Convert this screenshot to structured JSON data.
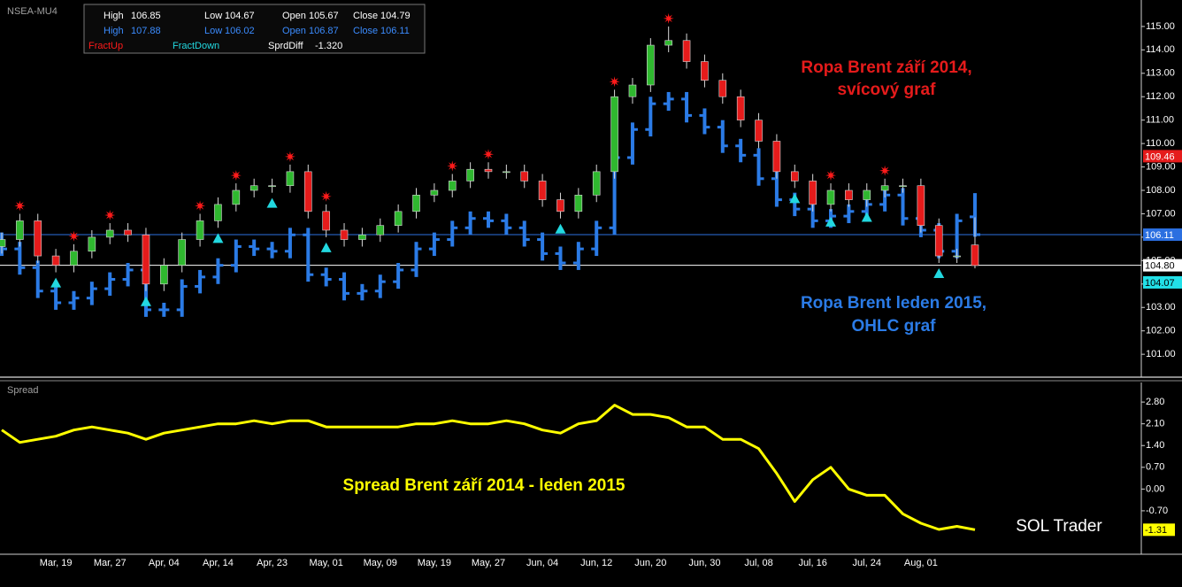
{
  "chart_data": [
    {
      "type": "candlestick",
      "title": "NSEA-MU4",
      "ylim": [
        100.06,
        116.13
      ],
      "yticks": [
        {
          "value": 101,
          "label": "101.00"
        },
        {
          "value": 102,
          "label": "102.00"
        },
        {
          "value": 103,
          "label": "103.00"
        },
        {
          "value": 104,
          "label": "104.00"
        },
        {
          "value": 105,
          "label": "105.00"
        },
        {
          "value": 106,
          "label": "106.00"
        },
        {
          "value": 107,
          "label": "107.00"
        },
        {
          "value": 108,
          "label": "108.00"
        },
        {
          "value": 109,
          "label": "109.00"
        },
        {
          "value": 110,
          "label": "110.00"
        },
        {
          "value": 111,
          "label": "111.00"
        },
        {
          "value": 112,
          "label": "112.00"
        },
        {
          "value": 113,
          "label": "113.00"
        },
        {
          "value": 114,
          "label": "114.00"
        },
        {
          "value": 115,
          "label": "115.00"
        }
      ],
      "series": [
        {
          "type": "ohlc",
          "color": "#2b7be6",
          "open": [
            105.9,
            105.5,
            104.7,
            103.7,
            103.2,
            103.4,
            103.8,
            104.2,
            104.6,
            102.9,
            102.9,
            103.9,
            104.3,
            104.8,
            105.6,
            105.5,
            105.4,
            106.1,
            104.4,
            104.2,
            103.6,
            103.7,
            104.1,
            104.6,
            105.5,
            105.9,
            106.4,
            106.8,
            106.7,
            106.4,
            105.9,
            105.3,
            104.9,
            105.5,
            106.4,
            109.4,
            110.6,
            111.7,
            111.9,
            111.2,
            110.7,
            109.9,
            109.5,
            108.5,
            107.6,
            107.2,
            106.7,
            106.9,
            107.1,
            107.4,
            107.8,
            106.8,
            106.3,
            105.4,
            106.87
          ],
          "high": [
            106.2,
            105.8,
            105.0,
            104.0,
            103.7,
            104.1,
            104.5,
            104.9,
            104.9,
            103.2,
            104.2,
            104.6,
            105.1,
            105.9,
            105.9,
            105.8,
            106.4,
            106.4,
            104.7,
            104.5,
            104.0,
            104.4,
            104.9,
            105.8,
            106.2,
            106.7,
            107.1,
            107.1,
            107.0,
            106.7,
            106.2,
            105.6,
            105.8,
            106.7,
            109.7,
            110.9,
            112.0,
            112.2,
            112.2,
            111.5,
            111.0,
            110.2,
            109.8,
            108.8,
            107.9,
            107.5,
            107.2,
            107.4,
            107.7,
            108.1,
            108.1,
            107.1,
            106.6,
            107.0,
            107.88
          ],
          "low": [
            105.2,
            104.4,
            103.4,
            102.9,
            102.9,
            103.1,
            103.5,
            103.9,
            102.6,
            102.6,
            102.6,
            103.6,
            104.0,
            104.5,
            105.2,
            105.1,
            105.1,
            104.1,
            103.9,
            103.3,
            103.3,
            103.4,
            103.8,
            104.3,
            105.2,
            105.6,
            106.1,
            106.4,
            106.1,
            105.6,
            105.0,
            104.6,
            104.6,
            105.2,
            106.1,
            109.1,
            110.3,
            111.4,
            110.9,
            110.4,
            109.6,
            109.2,
            108.2,
            107.3,
            106.9,
            106.4,
            106.4,
            106.6,
            106.8,
            107.1,
            106.5,
            106.0,
            105.1,
            105.1,
            106.02
          ],
          "close": [
            105.5,
            104.7,
            103.7,
            103.2,
            103.4,
            103.8,
            104.2,
            104.6,
            102.9,
            102.9,
            103.9,
            104.3,
            104.8,
            105.6,
            105.5,
            105.4,
            106.1,
            104.4,
            104.2,
            103.6,
            103.7,
            104.1,
            104.6,
            105.5,
            105.9,
            106.4,
            106.8,
            106.7,
            106.4,
            105.9,
            105.3,
            104.9,
            105.5,
            106.4,
            109.4,
            110.6,
            111.7,
            111.9,
            111.2,
            110.7,
            109.9,
            109.5,
            108.5,
            107.6,
            107.2,
            106.7,
            106.9,
            107.1,
            107.4,
            107.8,
            106.8,
            106.3,
            105.4,
            106.7,
            106.11
          ]
        },
        {
          "type": "candlestick",
          "up_color": "#2fb82f",
          "down_color": "#e51b1b",
          "open": [
            105.6,
            105.9,
            106.7,
            105.2,
            104.8,
            105.4,
            106.0,
            106.3,
            106.1,
            104.0,
            104.8,
            105.9,
            106.7,
            107.4,
            108.0,
            108.2,
            108.2,
            108.8,
            107.1,
            106.3,
            105.9,
            106.1,
            106.5,
            107.1,
            107.8,
            108.0,
            108.4,
            108.9,
            108.8,
            108.8,
            108.4,
            107.6,
            107.1,
            107.8,
            108.8,
            112.0,
            112.5,
            114.2,
            114.4,
            113.5,
            112.7,
            112.0,
            111.0,
            110.1,
            108.8,
            108.4,
            107.4,
            108.0,
            107.6,
            108.0,
            108.2,
            108.2,
            106.5,
            105.2,
            105.67
          ],
          "high": [
            106.2,
            107.0,
            107.0,
            105.5,
            105.7,
            106.3,
            106.6,
            106.6,
            106.4,
            105.1,
            106.2,
            107.0,
            107.7,
            108.3,
            108.5,
            108.5,
            109.1,
            109.1,
            107.4,
            106.6,
            106.4,
            106.8,
            107.4,
            108.1,
            108.3,
            108.7,
            109.2,
            109.2,
            109.1,
            109.1,
            108.7,
            107.9,
            108.1,
            109.1,
            112.3,
            112.8,
            114.5,
            115.0,
            114.7,
            113.8,
            113.0,
            112.3,
            111.3,
            110.4,
            109.1,
            108.7,
            108.3,
            108.3,
            108.3,
            108.5,
            108.5,
            108.5,
            106.8,
            105.5,
            106.85
          ],
          "low": [
            105.3,
            105.6,
            104.9,
            104.5,
            104.5,
            105.1,
            105.7,
            105.8,
            103.7,
            103.7,
            104.5,
            105.6,
            106.4,
            107.1,
            107.7,
            107.9,
            107.9,
            106.8,
            106.0,
            105.6,
            105.6,
            105.8,
            106.2,
            106.8,
            107.5,
            107.7,
            108.1,
            108.5,
            108.5,
            108.1,
            107.3,
            106.8,
            106.8,
            107.5,
            108.5,
            111.7,
            112.2,
            113.9,
            113.2,
            112.4,
            111.7,
            110.7,
            109.8,
            108.5,
            108.1,
            107.1,
            107.1,
            107.3,
            107.3,
            107.7,
            107.9,
            106.2,
            104.9,
            104.9,
            104.67
          ],
          "close": [
            105.9,
            106.7,
            105.2,
            104.8,
            105.4,
            106.0,
            106.3,
            106.1,
            104.0,
            104.8,
            105.9,
            106.7,
            107.4,
            108.0,
            108.2,
            108.2,
            108.8,
            107.1,
            106.3,
            105.9,
            106.1,
            106.5,
            107.1,
            107.8,
            108.0,
            108.4,
            108.9,
            108.8,
            108.8,
            108.4,
            107.6,
            107.1,
            107.8,
            108.8,
            112.0,
            112.5,
            114.2,
            114.4,
            113.5,
            112.7,
            112.0,
            111.0,
            110.1,
            108.8,
            108.4,
            107.4,
            108.0,
            107.6,
            108.0,
            108.2,
            108.2,
            106.5,
            105.2,
            105.2,
            104.79
          ]
        },
        {
          "type": "fractal",
          "shape": "star",
          "name": "FractUp",
          "color": "#ff1a1a",
          "values": [
            null,
            107.0,
            null,
            null,
            105.7,
            null,
            106.6,
            null,
            null,
            null,
            null,
            107.0,
            null,
            108.3,
            null,
            null,
            109.1,
            null,
            107.4,
            null,
            null,
            null,
            null,
            null,
            null,
            108.7,
            null,
            109.2,
            null,
            null,
            null,
            null,
            null,
            null,
            112.3,
            null,
            null,
            115.0,
            null,
            null,
            null,
            null,
            null,
            null,
            null,
            null,
            108.3,
            null,
            null,
            108.5,
            null,
            null,
            null,
            null,
            null
          ]
        },
        {
          "type": "fractal",
          "shape": "triangle",
          "name": "FractDown",
          "color": "#22d8e0",
          "values": [
            null,
            null,
            null,
            104.5,
            null,
            null,
            null,
            null,
            103.7,
            null,
            null,
            null,
            106.4,
            null,
            null,
            107.9,
            null,
            null,
            106.0,
            null,
            null,
            null,
            null,
            null,
            null,
            null,
            null,
            null,
            null,
            null,
            null,
            106.8,
            null,
            null,
            null,
            null,
            null,
            null,
            null,
            null,
            null,
            null,
            null,
            null,
            108.1,
            null,
            107.1,
            null,
            107.3,
            null,
            null,
            null,
            104.9,
            null,
            null
          ]
        }
      ],
      "price_tags": [
        {
          "value": 109.46,
          "color": "#e51b1b",
          "text_color": "#ffffff",
          "line": false
        },
        {
          "value": 106.11,
          "color": "#2b6fe0",
          "text_color": "#ffffff",
          "line": true
        },
        {
          "value": 104.8,
          "label": "104.80",
          "color": "#ffffff",
          "text_color": "#000000",
          "line": true
        },
        {
          "value": 104.07,
          "color": "#22e0e8",
          "text_color": "#000000",
          "line": false
        }
      ],
      "annotations": [
        {
          "lines": [
            "Ropa Brent září 2014,",
            "svícový graf"
          ],
          "color": "#e51b1b"
        },
        {
          "lines": [
            "Ropa Brent leden 2015,",
            "OHLC graf"
          ],
          "color": "#2b7be6"
        }
      ]
    },
    {
      "type": "line",
      "title": "Spread",
      "categories": [
        null,
        null,
        null,
        "Mar, 19",
        null,
        null,
        "Mar, 27",
        null,
        null,
        "Apr, 04",
        null,
        null,
        "Apr, 14",
        null,
        null,
        "Apr, 23",
        null,
        null,
        "May, 01",
        null,
        null,
        "May, 09",
        null,
        null,
        "May, 19",
        null,
        null,
        "May, 27",
        null,
        null,
        "Jun, 04",
        null,
        null,
        "Jun, 12",
        null,
        null,
        "Jun, 20",
        null,
        null,
        "Jun, 30",
        null,
        null,
        "Jul, 08",
        null,
        null,
        "Jul, 16",
        null,
        null,
        "Jul, 24",
        null,
        null,
        "Aug, 01",
        null,
        null,
        null
      ],
      "ylim": [
        -2.07,
        3.43
      ],
      "yticks": [
        {
          "value": 2.8,
          "label": "2.80"
        },
        {
          "value": 2.1,
          "label": "2.10"
        },
        {
          "value": 1.4,
          "label": "1.40"
        },
        {
          "value": 0.7,
          "label": "0.70"
        },
        {
          "value": 0,
          "label": "0.00"
        },
        {
          "value": -0.7,
          "label": "-0.70"
        }
      ],
      "series": [
        {
          "color": "#ffff00",
          "tag_text_color": "#000000",
          "values": [
            1.9,
            1.5,
            1.6,
            1.7,
            1.9,
            2.0,
            1.9,
            1.8,
            1.6,
            1.8,
            1.9,
            2.0,
            2.1,
            2.1,
            2.2,
            2.1,
            2.2,
            2.2,
            2.0,
            2.0,
            2.0,
            2.0,
            2.0,
            2.1,
            2.1,
            2.2,
            2.1,
            2.1,
            2.2,
            2.1,
            1.9,
            1.8,
            2.1,
            2.2,
            2.7,
            2.4,
            2.4,
            2.3,
            2.0,
            2.0,
            1.6,
            1.6,
            1.3,
            0.5,
            -0.4,
            0.3,
            0.7,
            0.0,
            -0.2,
            -0.2,
            -0.8,
            -1.1,
            -1.3,
            -1.2,
            -1.31
          ]
        }
      ],
      "annotations": [
        {
          "lines": [
            "Spread Brent září 2014 - leden 2015"
          ],
          "color": "#ffff00"
        }
      ]
    }
  ],
  "info_box": {
    "rows": [
      {
        "color": "#ffffff",
        "cells": [
          {
            "label": "High",
            "value": 106.85
          },
          {
            "label": "Low",
            "value": 104.67
          },
          {
            "label": "Open",
            "value": 105.67
          },
          {
            "label": "Close",
            "value": 104.79
          }
        ]
      },
      {
        "color": "#3b8cff",
        "cells": [
          {
            "label": "High",
            "value": 107.88
          },
          {
            "label": "Low",
            "value": 106.02
          },
          {
            "label": "Open",
            "value": 106.87
          },
          {
            "label": "Close",
            "value": 106.11
          }
        ]
      }
    ],
    "sprd_diff_label": "SprdDiff",
    "sprd_diff": {
      "value": -1.32,
      "label": "-1.320"
    }
  },
  "watermark": "SOL Trader"
}
